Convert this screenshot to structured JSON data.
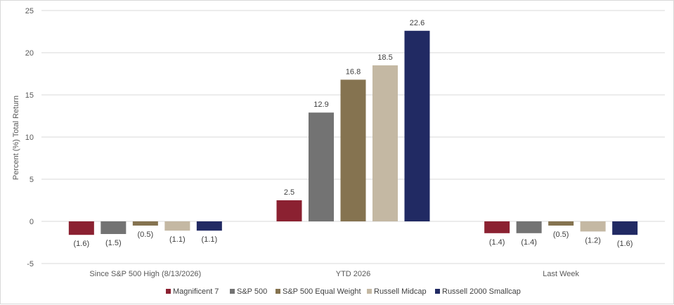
{
  "chart_data": {
    "type": "bar",
    "ylabel": "Percent (%) Total Return",
    "ylim": [
      -5,
      25
    ],
    "yticks": [
      -5,
      0,
      5,
      10,
      15,
      20,
      25
    ],
    "grid": true,
    "legend_position": "bottom",
    "categories": [
      "Since S&P 500 High (8/13/2026)",
      "YTD 2026",
      "Last Week"
    ],
    "series": [
      {
        "name": "Magnificent 7",
        "color": "#8b2131",
        "values": [
          -1.6,
          2.5,
          -1.4
        ],
        "labels": [
          "(1.6)",
          "2.5",
          "(1.4)"
        ]
      },
      {
        "name": "S&P 500",
        "color": "#737373",
        "values": [
          -1.5,
          12.9,
          -1.4
        ],
        "labels": [
          "(1.5)",
          "12.9",
          "(1.4)"
        ]
      },
      {
        "name": "S&P 500 Equal Weight",
        "color": "#857350",
        "values": [
          -0.5,
          16.8,
          -0.5
        ],
        "labels": [
          "(0.5)",
          "16.8",
          "(0.5)"
        ]
      },
      {
        "name": "Russell Midcap",
        "color": "#c4b8a3",
        "values": [
          -1.1,
          18.5,
          -1.2
        ],
        "labels": [
          "(1.1)",
          "18.5",
          "(1.2)"
        ]
      },
      {
        "name": "Russell 2000 Smallcap",
        "color": "#212a63",
        "values": [
          -1.1,
          22.6,
          -1.6
        ],
        "labels": [
          "(1.1)",
          "22.6",
          "(1.6)"
        ]
      }
    ]
  }
}
